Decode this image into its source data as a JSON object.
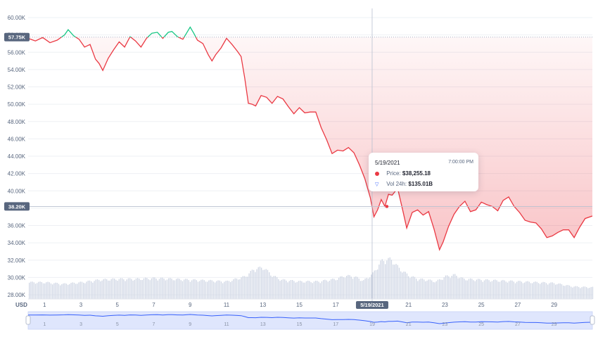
{
  "chart_data": {
    "type": "line",
    "currency_label": "USD",
    "ylim": [
      28000,
      60000
    ],
    "y_ticks": [
      "60.00K",
      "58.00K",
      "56.00K",
      "54.00K",
      "52.00K",
      "50.00K",
      "48.00K",
      "46.00K",
      "44.00K",
      "42.00K",
      "40.00K",
      "38.00K",
      "36.00K",
      "34.00K",
      "32.00K",
      "30.00K",
      "28.00K"
    ],
    "y_tick_values": [
      60000,
      58000,
      56000,
      54000,
      52000,
      50000,
      48000,
      46000,
      44000,
      42000,
      40000,
      38000,
      36000,
      34000,
      32000,
      30000,
      28000
    ],
    "x_ticks": [
      "1",
      "3",
      "5",
      "7",
      "9",
      "11",
      "13",
      "15",
      "17",
      "19",
      "21",
      "23",
      "25",
      "27",
      "29"
    ],
    "x_tick_days": [
      1,
      3,
      5,
      7,
      9,
      11,
      13,
      15,
      17,
      19,
      21,
      23,
      25,
      27,
      29
    ],
    "x_range_days": [
      0.1,
      31.1
    ],
    "open_price_label": "57.75K",
    "open_price": 57750,
    "hover_price_label": "38.20K",
    "hover_price": 38200,
    "hover_date_label": "5/19/2021",
    "hover_day": 19,
    "colors": {
      "above_open": "#16c784",
      "below_open": "#ea3943",
      "volume": "#cfd6e4",
      "navigator_line": "#3861fb"
    },
    "price_series": [
      [
        0.1,
        57600
      ],
      [
        0.5,
        57300
      ],
      [
        0.9,
        57700
      ],
      [
        1.3,
        57100
      ],
      [
        1.7,
        57400
      ],
      [
        2.1,
        58000
      ],
      [
        2.3,
        58600
      ],
      [
        2.6,
        57900
      ],
      [
        2.9,
        57500
      ],
      [
        3.2,
        56600
      ],
      [
        3.5,
        56900
      ],
      [
        3.8,
        55200
      ],
      [
        4.0,
        54700
      ],
      [
        4.2,
        53900
      ],
      [
        4.5,
        55300
      ],
      [
        4.8,
        56300
      ],
      [
        5.1,
        57200
      ],
      [
        5.4,
        56600
      ],
      [
        5.7,
        57800
      ],
      [
        6.0,
        57300
      ],
      [
        6.3,
        56600
      ],
      [
        6.6,
        57600
      ],
      [
        6.9,
        58200
      ],
      [
        7.2,
        58300
      ],
      [
        7.5,
        57600
      ],
      [
        7.8,
        58300
      ],
      [
        8.0,
        58400
      ],
      [
        8.3,
        57800
      ],
      [
        8.6,
        57500
      ],
      [
        8.8,
        58200
      ],
      [
        9.0,
        58900
      ],
      [
        9.2,
        58200
      ],
      [
        9.4,
        57400
      ],
      [
        9.7,
        57000
      ],
      [
        10.0,
        55700
      ],
      [
        10.2,
        55000
      ],
      [
        10.4,
        55700
      ],
      [
        10.7,
        56500
      ],
      [
        11.0,
        57600
      ],
      [
        11.3,
        56900
      ],
      [
        11.6,
        56100
      ],
      [
        11.8,
        55500
      ],
      [
        12.0,
        53000
      ],
      [
        12.2,
        50100
      ],
      [
        12.4,
        50000
      ],
      [
        12.6,
        49800
      ],
      [
        12.9,
        51000
      ],
      [
        13.2,
        50800
      ],
      [
        13.5,
        50100
      ],
      [
        13.8,
        50900
      ],
      [
        14.1,
        50600
      ],
      [
        14.4,
        49700
      ],
      [
        14.7,
        48900
      ],
      [
        15.0,
        49600
      ],
      [
        15.3,
        49000
      ],
      [
        15.6,
        49100
      ],
      [
        15.9,
        49100
      ],
      [
        16.2,
        47300
      ],
      [
        16.5,
        45900
      ],
      [
        16.8,
        44300
      ],
      [
        17.1,
        44700
      ],
      [
        17.4,
        44600
      ],
      [
        17.7,
        45000
      ],
      [
        18.0,
        44400
      ],
      [
        18.3,
        43000
      ],
      [
        18.6,
        41400
      ],
      [
        18.9,
        39200
      ],
      [
        19.1,
        37000
      ],
      [
        19.3,
        37800
      ],
      [
        19.5,
        39000
      ],
      [
        19.7,
        38200
      ],
      [
        19.9,
        39600
      ],
      [
        20.1,
        39500
      ],
      [
        20.4,
        40300
      ],
      [
        20.7,
        37600
      ],
      [
        20.9,
        35700
      ],
      [
        21.2,
        37500
      ],
      [
        21.5,
        37800
      ],
      [
        21.8,
        37200
      ],
      [
        22.1,
        37600
      ],
      [
        22.4,
        35600
      ],
      [
        22.7,
        33200
      ],
      [
        22.9,
        34100
      ],
      [
        23.2,
        35900
      ],
      [
        23.5,
        37300
      ],
      [
        23.8,
        38200
      ],
      [
        24.1,
        38800
      ],
      [
        24.4,
        37600
      ],
      [
        24.7,
        37800
      ],
      [
        25.0,
        38700
      ],
      [
        25.3,
        38400
      ],
      [
        25.6,
        38200
      ],
      [
        25.9,
        37700
      ],
      [
        26.2,
        38900
      ],
      [
        26.5,
        39300
      ],
      [
        26.8,
        38200
      ],
      [
        27.1,
        37500
      ],
      [
        27.4,
        36600
      ],
      [
        27.7,
        36400
      ],
      [
        28.0,
        36300
      ],
      [
        28.3,
        35600
      ],
      [
        28.6,
        34600
      ],
      [
        28.9,
        34800
      ],
      [
        29.2,
        35200
      ],
      [
        29.5,
        35500
      ],
      [
        29.8,
        35500
      ],
      [
        30.1,
        34600
      ],
      [
        30.4,
        35800
      ],
      [
        30.7,
        36800
      ],
      [
        31.1,
        37100
      ]
    ],
    "volume_series": [
      [
        1,
        1.0
      ],
      [
        2,
        0.9
      ],
      [
        3,
        1.0
      ],
      [
        4,
        1.15
      ],
      [
        5,
        1.2
      ],
      [
        6,
        1.2
      ],
      [
        7,
        1.25
      ],
      [
        8,
        1.2
      ],
      [
        9,
        1.15
      ],
      [
        10,
        1.1
      ],
      [
        11,
        1.05
      ],
      [
        11.5,
        1.2
      ],
      [
        12,
        1.35
      ],
      [
        12.5,
        1.8
      ],
      [
        13,
        1.9
      ],
      [
        13.5,
        1.4
      ],
      [
        14,
        1.15
      ],
      [
        15,
        1.05
      ],
      [
        16,
        1.05
      ],
      [
        17,
        1.2
      ],
      [
        17.5,
        1.4
      ],
      [
        18,
        1.35
      ],
      [
        18.5,
        1.1
      ],
      [
        19,
        1.5
      ],
      [
        19.5,
        2.3
      ],
      [
        20,
        2.4
      ],
      [
        20.5,
        1.8
      ],
      [
        21,
        1.4
      ],
      [
        21.5,
        1.2
      ],
      [
        22,
        1.15
      ],
      [
        22.5,
        1.05
      ],
      [
        23,
        1.35
      ],
      [
        23.5,
        1.45
      ],
      [
        24,
        1.2
      ],
      [
        25,
        1.15
      ],
      [
        26,
        1.1
      ],
      [
        27,
        1.05
      ],
      [
        28,
        1.0
      ],
      [
        29,
        0.95
      ],
      [
        30,
        0.75
      ],
      [
        31,
        0.7
      ]
    ]
  },
  "tooltip": {
    "date": "5/19/2021",
    "time": "7:00:00 PM",
    "price_label": "Price:",
    "price_value": "$38,255.18",
    "volume_label": "Vol 24h:",
    "volume_value": "$135.01B"
  }
}
